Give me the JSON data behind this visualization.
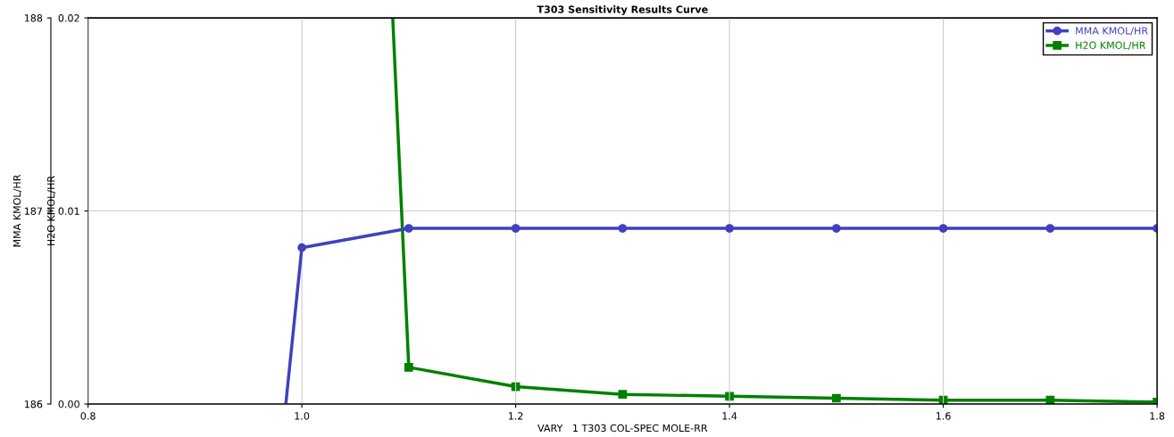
{
  "chart_data": {
    "type": "line",
    "title": "T303 Sensitivity Results Curve",
    "xlabel": "VARY   1 T303 COL-SPEC MOLE-RR",
    "ylabel": "MMA KMOL/HR",
    "y2label": "H2O KMOL/HR",
    "xlim": [
      0.8,
      1.8
    ],
    "xticks": [
      {
        "value": 0.8,
        "label": "0.8"
      },
      {
        "value": 1.0,
        "label": "1.0"
      },
      {
        "value": 1.2,
        "label": "1.2"
      },
      {
        "value": 1.4,
        "label": "1.4"
      },
      {
        "value": 1.6,
        "label": "1.6"
      },
      {
        "value": 1.8,
        "label": "1.8"
      }
    ],
    "ylim": [
      186,
      188
    ],
    "yticks": [
      186,
      187,
      188
    ],
    "y2lim": [
      0,
      0.02
    ],
    "y2ticks": [
      {
        "value": 0,
        "label": "0.00"
      },
      {
        "value": 0.01,
        "label": "0.01"
      },
      {
        "value": 0.02,
        "label": "0.02"
      }
    ],
    "grid": true,
    "legend": "top right",
    "series": [
      {
        "name": "MMA KMOL/HR",
        "color": "#4040c0",
        "marker": "circle",
        "x": [
          0.985,
          1.0,
          1.1,
          1.2,
          1.3,
          1.4,
          1.5,
          1.6,
          1.7,
          1.8
        ],
        "values": [
          186,
          186.81,
          186.91,
          186.91,
          186.91,
          186.91,
          186.91,
          186.91,
          186.91,
          186.91
        ]
      },
      {
        "name": "H2O KMOL/HR",
        "color": "#008000",
        "marker": "square",
        "axis": "y2",
        "x": [
          1.085,
          1.1,
          1.2,
          1.3,
          1.4,
          1.5,
          1.6,
          1.7,
          1.8
        ],
        "values": [
          0.02,
          0.0019,
          0.0009,
          0.0005,
          0.0004,
          0.0003,
          0.0002,
          0.0002,
          0.0001
        ]
      }
    ]
  }
}
